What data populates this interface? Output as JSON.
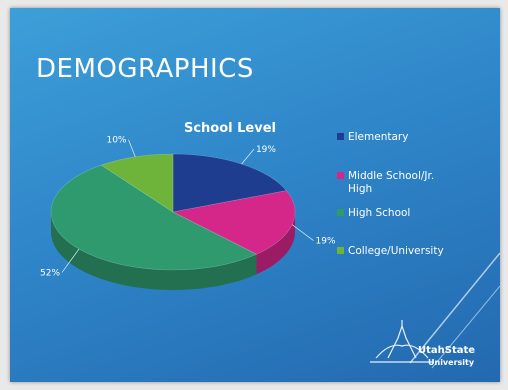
{
  "slide": {
    "title": "DEMOGRAPHICS",
    "logo": {
      "line1": "UtahState",
      "line2": "University"
    }
  },
  "chart_data": {
    "type": "pie",
    "title": "School Level",
    "legend_position": "right",
    "series": [
      {
        "name": "Elementary",
        "value": 19,
        "label": "19%",
        "color": "#1f3d8f",
        "side": "#172d69"
      },
      {
        "name": "Middle School/Jr. High",
        "value": 19,
        "label": "19%",
        "color": "#d5268a",
        "side": "#9b1c64"
      },
      {
        "name": "High School",
        "value": 52,
        "label": "52%",
        "color": "#2f9a6d",
        "side": "#22704f"
      },
      {
        "name": "College/University",
        "value": 10,
        "label": "10%",
        "color": "#6fb43a",
        "side": "#50832a"
      }
    ]
  }
}
